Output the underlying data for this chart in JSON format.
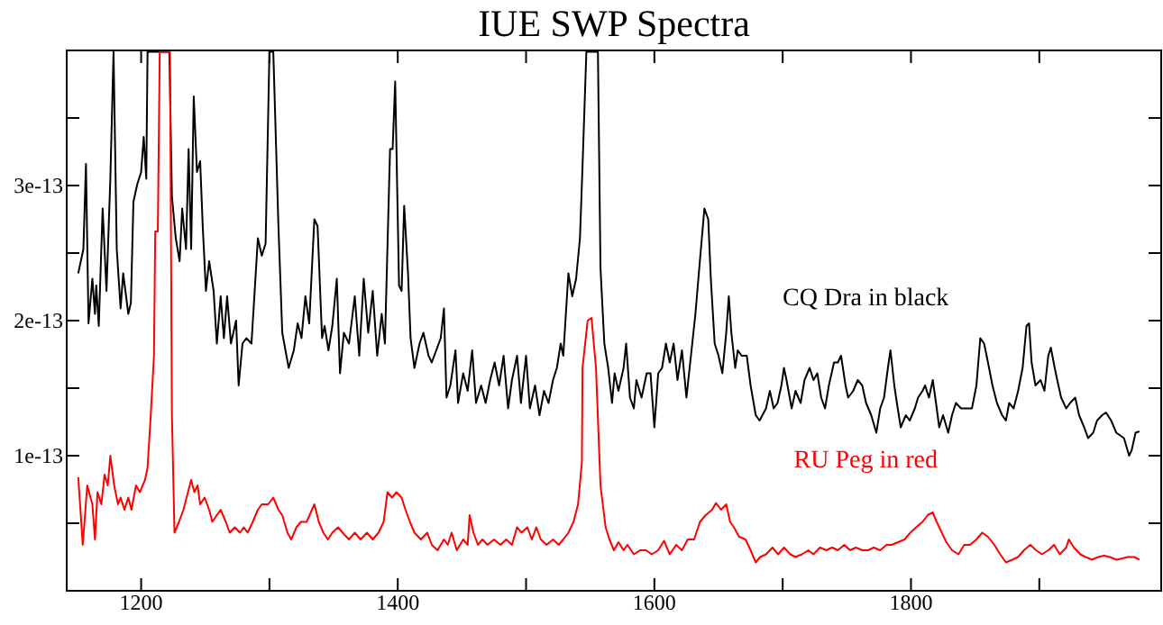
{
  "chart_data": {
    "type": "line",
    "title": "IUE SWP Spectra",
    "xlim": [
      1142,
      1995
    ],
    "ylim": [
      0,
      4e-13
    ],
    "xticks": [
      1200,
      {
        "value": 1300,
        "label": null
      },
      1400,
      {
        "value": 1500,
        "label": null
      },
      1600,
      {
        "value": 1700,
        "label": null
      },
      1800,
      {
        "value": 1900,
        "label": null
      }
    ],
    "yticks": [
      {
        "value": 5e-14,
        "label": null
      },
      1e-13,
      {
        "value": 1.5e-13,
        "label": null
      },
      2e-13,
      {
        "value": 2.5e-13,
        "label": null
      },
      3e-13,
      {
        "value": 3.5e-13,
        "label": null
      }
    ],
    "series": [
      {
        "name": "CQ Dra in black",
        "color": "#000000",
        "x": [
          1151,
          1155,
          1157,
          1159,
          1162,
          1164,
          1165,
          1167,
          1170,
          1173,
          1176,
          1178.5,
          1181,
          1184,
          1186,
          1190,
          1192,
          1194,
          1197,
          1200,
          1202,
          1204,
          1205,
          1222,
          1224,
          1227,
          1230,
          1232,
          1235,
          1237,
          1239,
          1241,
          1243.5,
          1246,
          1248,
          1250.5,
          1253,
          1256.5,
          1259,
          1262,
          1264.5,
          1267,
          1270,
          1274,
          1276,
          1279,
          1282,
          1286,
          1291,
          1294,
          1297,
          1300,
          1303,
          1307,
          1310,
          1315,
          1319,
          1322,
          1325,
          1328,
          1331,
          1335,
          1337.5,
          1341,
          1343,
          1346,
          1349,
          1352.5,
          1355,
          1358,
          1362,
          1366.5,
          1370,
          1373.5,
          1377,
          1380.5,
          1384,
          1387.5,
          1390,
          1394,
          1396,
          1398,
          1401,
          1403,
          1405,
          1408,
          1410,
          1413,
          1417,
          1420,
          1424,
          1426.5,
          1430,
          1433.5,
          1436,
          1438,
          1441,
          1445,
          1447,
          1451,
          1454.5,
          1458,
          1461,
          1465,
          1468.5,
          1472,
          1475.5,
          1479,
          1482.5,
          1486,
          1489,
          1493,
          1496,
          1500,
          1503,
          1507,
          1510.5,
          1514,
          1517.5,
          1521,
          1524,
          1527,
          1529,
          1533,
          1536,
          1539,
          1542,
          1544,
          1547,
          1556,
          1558,
          1561,
          1564,
          1567,
          1569,
          1572,
          1576,
          1578,
          1581,
          1584,
          1586,
          1590,
          1594,
          1597,
          1600,
          1603,
          1606,
          1609,
          1612,
          1615,
          1618,
          1621.5,
          1625,
          1628.5,
          1632,
          1635,
          1637,
          1639,
          1642,
          1644,
          1647,
          1650,
          1653,
          1656,
          1658,
          1660,
          1663,
          1665,
          1668,
          1672,
          1675,
          1679,
          1682,
          1687,
          1690,
          1693,
          1696,
          1699,
          1701,
          1703,
          1707,
          1710,
          1714,
          1717,
          1721,
          1724,
          1727,
          1730,
          1733,
          1736,
          1740,
          1743,
          1745.5,
          1749,
          1751,
          1755,
          1758.5,
          1762,
          1765,
          1769,
          1773,
          1776,
          1779,
          1782,
          1784,
          1787,
          1789,
          1792,
          1796,
          1799,
          1803,
          1805.5,
          1809,
          1811,
          1814,
          1817,
          1819.5,
          1822,
          1825,
          1829,
          1832,
          1835,
          1839,
          1843,
          1847.5,
          1851,
          1854,
          1857,
          1860,
          1863.5,
          1867,
          1871,
          1874,
          1876.5,
          1880,
          1883.5,
          1887,
          1890,
          1892,
          1894,
          1897,
          1901,
          1904,
          1907,
          1909,
          1912,
          1914,
          1917,
          1921,
          1924,
          1928,
          1931,
          1935,
          1938,
          1942,
          1945,
          1949,
          1952,
          1956,
          1960,
          1963,
          1966,
          1970,
          1972,
          1975,
          1978
        ],
        "values": [
          2.35e-13,
          2.53e-13,
          3.16e-13,
          1.98e-13,
          2.31e-13,
          2.05e-13,
          2.26e-13,
          1.96e-13,
          2.83e-13,
          2.22e-13,
          3.05e-13,
          3.99e-13,
          2.53e-13,
          2.09e-13,
          2.35e-13,
          2.05e-13,
          2.13e-13,
          2.88e-13,
          3.01e-13,
          3.1e-13,
          3.36e-13,
          3.05e-13,
          3.99e-13,
          3.99e-13,
          2.92e-13,
          2.61e-13,
          2.44e-13,
          2.83e-13,
          2.53e-13,
          3.27e-13,
          2.53e-13,
          3.66e-13,
          3.1e-13,
          3.18e-13,
          2.7e-13,
          2.22e-13,
          2.44e-13,
          2.22e-13,
          1.83e-13,
          2.18e-13,
          1.87e-13,
          2.18e-13,
          1.83e-13,
          2e-13,
          1.52e-13,
          1.83e-13,
          1.87e-13,
          1.83e-13,
          2.61e-13,
          2.48e-13,
          2.57e-13,
          3.99e-13,
          3.99e-13,
          2.7e-13,
          1.91e-13,
          1.65e-13,
          1.78e-13,
          1.98e-13,
          1.87e-13,
          2.18e-13,
          1.98e-13,
          2.75e-13,
          2.7e-13,
          1.87e-13,
          1.96e-13,
          1.78e-13,
          1.96e-13,
          2.31e-13,
          1.61e-13,
          1.91e-13,
          1.83e-13,
          2.18e-13,
          1.74e-13,
          2.31e-13,
          1.91e-13,
          2.22e-13,
          1.74e-13,
          2.05e-13,
          1.83e-13,
          3.27e-13,
          3.27e-13,
          3.77e-13,
          2.26e-13,
          2.22e-13,
          2.85e-13,
          2.35e-13,
          1.87e-13,
          1.65e-13,
          1.83e-13,
          1.91e-13,
          1.74e-13,
          1.69e-13,
          1.78e-13,
          1.87e-13,
          2.09e-13,
          1.43e-13,
          1.52e-13,
          1.78e-13,
          1.39e-13,
          1.61e-13,
          1.48e-13,
          1.78e-13,
          1.39e-13,
          1.52e-13,
          1.39e-13,
          1.56e-13,
          1.69e-13,
          1.52e-13,
          1.74e-13,
          1.35e-13,
          1.56e-13,
          1.74e-13,
          1.39e-13,
          1.74e-13,
          1.35e-13,
          1.52e-13,
          1.3e-13,
          1.48e-13,
          1.39e-13,
          1.56e-13,
          1.65e-13,
          1.83e-13,
          1.74e-13,
          2.35e-13,
          2.18e-13,
          2.31e-13,
          2.61e-13,
          3.14e-13,
          3.99e-13,
          3.99e-13,
          2.39e-13,
          1.83e-13,
          1.65e-13,
          1.39e-13,
          1.61e-13,
          1.48e-13,
          1.65e-13,
          1.83e-13,
          1.43e-13,
          1.35e-13,
          1.56e-13,
          1.43e-13,
          1.61e-13,
          1.61e-13,
          1.21e-13,
          1.61e-13,
          1.65e-13,
          1.83e-13,
          1.69e-13,
          1.83e-13,
          1.56e-13,
          1.78e-13,
          1.43e-13,
          1.74e-13,
          2.05e-13,
          2.39e-13,
          2.61e-13,
          2.83e-13,
          2.75e-13,
          2.31e-13,
          1.83e-13,
          1.74e-13,
          1.61e-13,
          1.91e-13,
          2.18e-13,
          1.91e-13,
          1.65e-13,
          1.78e-13,
          1.74e-13,
          1.74e-13,
          1.52e-13,
          1.3e-13,
          1.26e-13,
          1.35e-13,
          1.48e-13,
          1.35e-13,
          1.39e-13,
          1.52e-13,
          1.65e-13,
          1.56e-13,
          1.35e-13,
          1.48e-13,
          1.39e-13,
          1.56e-13,
          1.65e-13,
          1.56e-13,
          1.61e-13,
          1.43e-13,
          1.35e-13,
          1.52e-13,
          1.69e-13,
          1.69e-13,
          1.74e-13,
          1.52e-13,
          1.43e-13,
          1.48e-13,
          1.56e-13,
          1.52e-13,
          1.39e-13,
          1.3e-13,
          1.17e-13,
          1.35e-13,
          1.43e-13,
          1.65e-13,
          1.78e-13,
          1.52e-13,
          1.39e-13,
          1.21e-13,
          1.3e-13,
          1.26e-13,
          1.35e-13,
          1.43e-13,
          1.48e-13,
          1.52e-13,
          1.43e-13,
          1.56e-13,
          1.39e-13,
          1.21e-13,
          1.3e-13,
          1.17e-13,
          1.3e-13,
          1.39e-13,
          1.35e-13,
          1.35e-13,
          1.35e-13,
          1.52e-13,
          1.87e-13,
          1.83e-13,
          1.69e-13,
          1.52e-13,
          1.39e-13,
          1.3e-13,
          1.26e-13,
          1.39e-13,
          1.35e-13,
          1.48e-13,
          1.65e-13,
          1.96e-13,
          1.98e-13,
          1.69e-13,
          1.52e-13,
          1.56e-13,
          1.48e-13,
          1.74e-13,
          1.8e-13,
          1.65e-13,
          1.56e-13,
          1.43e-13,
          1.35e-13,
          1.39e-13,
          1.43e-13,
          1.3e-13,
          1.21e-13,
          1.13e-13,
          1.17e-13,
          1.26e-13,
          1.3e-13,
          1.32e-13,
          1.26e-13,
          1.17e-13,
          1.15e-13,
          1.13e-13,
          1e-13,
          1.04e-13,
          1.17e-13,
          1.18e-13
        ]
      },
      {
        "name": "RU Peg in red",
        "color": "#ff0000",
        "x": [
          1151,
          1154.5,
          1158,
          1162,
          1164,
          1166,
          1169,
          1171.5,
          1174,
          1176,
          1179,
          1182,
          1184,
          1187,
          1190,
          1192.5,
          1196,
          1199,
          1203,
          1205,
          1207.5,
          1210,
          1211,
          1213,
          1214.5,
          1222.5,
          1224,
          1226,
          1229.5,
          1233,
          1236.5,
          1239,
          1241.5,
          1244,
          1246,
          1249.5,
          1253,
          1255.5,
          1259,
          1262,
          1266,
          1269,
          1273,
          1277,
          1280,
          1283,
          1287,
          1291,
          1294,
          1299,
          1303,
          1307,
          1310,
          1314,
          1317,
          1321,
          1324.5,
          1329,
          1335,
          1338.5,
          1342,
          1345.5,
          1349,
          1353.5,
          1357,
          1362,
          1366.5,
          1371,
          1376,
          1380.5,
          1385,
          1389,
          1392,
          1395.5,
          1399,
          1403,
          1406,
          1409.5,
          1413,
          1418,
          1423,
          1426.5,
          1431,
          1436,
          1439,
          1442,
          1446,
          1451,
          1454.5,
          1456,
          1459,
          1462.5,
          1466,
          1470,
          1475,
          1480,
          1484.5,
          1489,
          1493,
          1496.5,
          1501,
          1504.5,
          1508,
          1511.5,
          1516,
          1521,
          1525.5,
          1529,
          1533,
          1537,
          1540.5,
          1543.5,
          1544,
          1548,
          1551,
          1554.5,
          1558,
          1562,
          1565,
          1568.5,
          1572,
          1576,
          1579,
          1584,
          1589,
          1593.5,
          1598,
          1603,
          1607.5,
          1612,
          1617,
          1621.5,
          1626,
          1631,
          1635.5,
          1640,
          1645,
          1648,
          1652,
          1656,
          1659,
          1662,
          1666,
          1671,
          1675,
          1679,
          1682.5,
          1687,
          1692,
          1696.5,
          1701,
          1706,
          1710,
          1715,
          1720,
          1724,
          1729,
          1734,
          1738.5,
          1743,
          1748,
          1752.5,
          1757,
          1762,
          1766.5,
          1771,
          1776,
          1781,
          1785,
          1790,
          1795,
          1799.5,
          1804,
          1809,
          1813,
          1817,
          1820,
          1824,
          1827.5,
          1832,
          1837,
          1841.5,
          1846,
          1851,
          1855.5,
          1860,
          1865,
          1869.5,
          1874,
          1879,
          1883.5,
          1888,
          1893,
          1897.5,
          1902,
          1907,
          1911.5,
          1916,
          1921,
          1923,
          1927,
          1932,
          1936,
          1941,
          1946,
          1950.5,
          1955,
          1960,
          1965,
          1969,
          1974,
          1978
        ],
        "values": [
          8.4e-14,
          3.4e-14,
          7.8e-14,
          6.4e-14,
          3.8e-14,
          7.3e-14,
          6.4e-14,
          8.6e-14,
          7.8e-14,
          1e-13,
          7.8e-14,
          6.4e-14,
          6.9e-14,
          6e-14,
          6.9e-14,
          6e-14,
          7.8e-14,
          7.3e-14,
          8.2e-14,
          9.1e-14,
          1.3e-13,
          1.74e-13,
          2.66e-13,
          2.66e-13,
          3.99e-13,
          3.99e-13,
          1.3e-13,
          4.3e-14,
          5.1e-14,
          6e-14,
          7.3e-14,
          8.2e-14,
          7.3e-14,
          7.8e-14,
          6.4e-14,
          6.9e-14,
          6e-14,
          5.1e-14,
          5.6e-14,
          6e-14,
          5.1e-14,
          4.3e-14,
          4.7e-14,
          4.3e-14,
          4.7e-14,
          4.3e-14,
          5.1e-14,
          6e-14,
          6.4e-14,
          6.4e-14,
          6.9e-14,
          6e-14,
          5.6e-14,
          4.3e-14,
          3.8e-14,
          4.7e-14,
          5.1e-14,
          5.1e-14,
          6.4e-14,
          5.1e-14,
          4.3e-14,
          3.8e-14,
          4.3e-14,
          4.7e-14,
          4.3e-14,
          3.8e-14,
          4.3e-14,
          3.8e-14,
          4.3e-14,
          3.8e-14,
          4.3e-14,
          5.1e-14,
          7.3e-14,
          6.9e-14,
          7.3e-14,
          6.9e-14,
          6e-14,
          5.1e-14,
          4.3e-14,
          3.8e-14,
          4.3e-14,
          3.4e-14,
          3e-14,
          3.8e-14,
          3.4e-14,
          4.3e-14,
          3e-14,
          3.8e-14,
          3.4e-14,
          5.6e-14,
          4.3e-14,
          3.4e-14,
          3.8e-14,
          3.4e-14,
          3.8e-14,
          3.4e-14,
          3.8e-14,
          3.4e-14,
          4.7e-14,
          4.3e-14,
          4.7e-14,
          3.8e-14,
          4.7e-14,
          3.8e-14,
          3.4e-14,
          3.8e-14,
          3.4e-14,
          3.8e-14,
          4.3e-14,
          5.1e-14,
          6.4e-14,
          9.5e-14,
          1.65e-13,
          2e-13,
          2.02e-13,
          1.65e-13,
          7.8e-14,
          4.7e-14,
          3.8e-14,
          3e-14,
          3.6e-14,
          3e-14,
          3.4e-14,
          2.7e-14,
          3e-14,
          3e-14,
          2.7e-14,
          3e-14,
          3.7e-14,
          2.7e-14,
          3.4e-14,
          3e-14,
          3.8e-14,
          3.8e-14,
          5.1e-14,
          5.6e-14,
          6e-14,
          6.5e-14,
          6e-14,
          6.4e-14,
          5.1e-14,
          4.7e-14,
          4e-14,
          3.8e-14,
          3e-14,
          2.1e-14,
          2.5e-14,
          2.7e-14,
          3.2e-14,
          2.7e-14,
          3.2e-14,
          2.7e-14,
          2.5e-14,
          2.7e-14,
          3e-14,
          2.7e-14,
          3.2e-14,
          3e-14,
          3.2e-14,
          3e-14,
          3.4e-14,
          3e-14,
          3.2e-14,
          3e-14,
          3e-14,
          3.2e-14,
          3e-14,
          3.4e-14,
          3.4e-14,
          3.6e-14,
          3.8e-14,
          4.3e-14,
          4.7e-14,
          5.1e-14,
          5.6e-14,
          5.8e-14,
          5.1e-14,
          4.3e-14,
          3.6e-14,
          3e-14,
          2.7e-14,
          3.4e-14,
          3.4e-14,
          3.8e-14,
          4.3e-14,
          4e-14,
          3.4e-14,
          2.7e-14,
          2.1e-14,
          2.3e-14,
          2.5e-14,
          3e-14,
          3.4e-14,
          3e-14,
          2.7e-14,
          3e-14,
          3.4e-14,
          2.7e-14,
          3.2e-14,
          3.8e-14,
          3.2e-14,
          2.7e-14,
          2.5e-14,
          2.3e-14,
          2.5e-14,
          2.6e-14,
          2.5e-14,
          2.3e-14,
          2.4e-14,
          2.5e-14,
          2.5e-14,
          2.3e-14
        ]
      }
    ]
  }
}
